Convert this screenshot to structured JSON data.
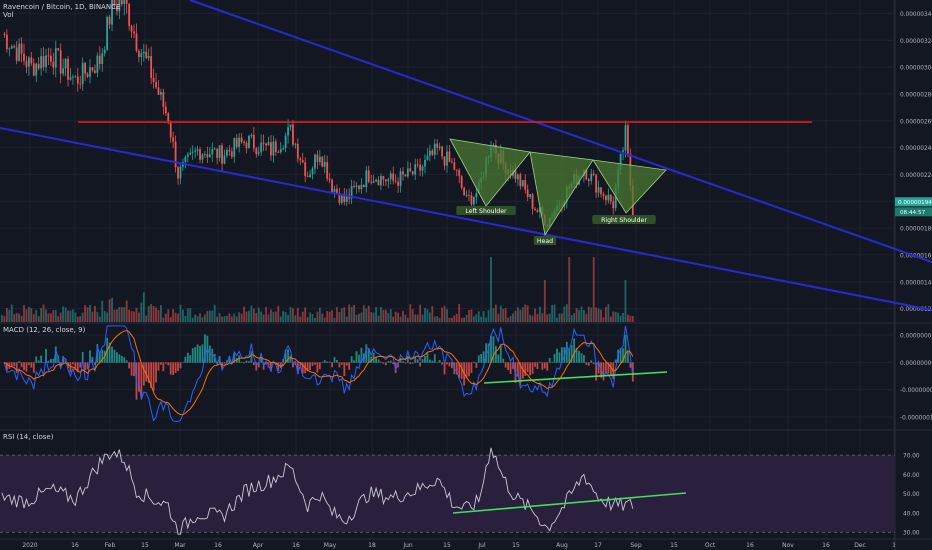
{
  "header": {
    "symbol_title": "Ravencoin / Bitcoin, 1D, BINANCE",
    "vol_label": "Vol",
    "macd_label": "MACD (12, 26, close, 9)",
    "rsi_label": "RSI (14, close)"
  },
  "colors": {
    "background": "#131722",
    "grid": "#1e222d",
    "up": "#26a69a",
    "down": "#ef5350",
    "channel": "#2929d4",
    "resistance": "#e11b1b",
    "pattern_fill": "#4b7a32",
    "trendline": "#42e05a",
    "rsi_line": "#c9c9d2",
    "rsi_band": "#2a1f3d",
    "macd_line": "#2962ff",
    "signal_line": "#ff6d00"
  },
  "chart_data": [
    {
      "panel": "price",
      "type": "candlestick",
      "title": "Ravencoin / Bitcoin, 1D, BINANCE",
      "x_ticks": [
        "2020",
        "16",
        "Feb",
        "15",
        "Mar",
        "16",
        "Apr",
        "16",
        "May",
        "18",
        "Jun",
        "15",
        "Jul",
        "15",
        "Aug",
        "17",
        "Sep",
        "15",
        "Oct",
        "16",
        "Nov",
        "16",
        "Dec",
        "1"
      ],
      "y_ticks": [
        "0.00000120",
        "0.00000140",
        "0.00000160",
        "0.00000180",
        "0.00000200",
        "0.00000220",
        "0.00000240",
        "0.00000260",
        "0.00000280",
        "0.00000300",
        "0.00000320",
        "0.00000340"
      ],
      "ylim": [
        1.1e-06,
        3.5e-06
      ],
      "last_price_tag": "0.00000194",
      "countdown_tag": "08:44:57",
      "approx_close_path": [
        [
          0,
          3.25e-06
        ],
        [
          12,
          3e-06
        ],
        [
          20,
          3.1e-06
        ],
        [
          30,
          2.9e-06
        ],
        [
          40,
          3.05e-06
        ],
        [
          45,
          3.45e-06
        ],
        [
          50,
          3.5e-06
        ],
        [
          55,
          3.2e-06
        ],
        [
          60,
          3e-06
        ],
        [
          63,
          2.85e-06
        ],
        [
          68,
          2.62e-06
        ],
        [
          72,
          2.2e-06
        ],
        [
          80,
          2.38e-06
        ],
        [
          90,
          2.35e-06
        ],
        [
          100,
          2.45e-06
        ],
        [
          110,
          2.38e-06
        ],
        [
          118,
          2.52e-06
        ],
        [
          125,
          2.2e-06
        ],
        [
          130,
          2.38e-06
        ],
        [
          135,
          2.12e-06
        ],
        [
          140,
          2e-06
        ],
        [
          150,
          2.2e-06
        ],
        [
          160,
          2.15e-06
        ],
        [
          170,
          2.22e-06
        ],
        [
          178,
          2.38e-06
        ],
        [
          185,
          2.25e-06
        ],
        [
          190,
          2e-06
        ],
        [
          195,
          2.08e-06
        ],
        [
          200,
          2.45e-06
        ],
        [
          205,
          2.28e-06
        ],
        [
          210,
          2.2e-06
        ],
        [
          218,
          1.95e-06
        ],
        [
          223,
          1.85e-06
        ],
        [
          230,
          2.05e-06
        ],
        [
          238,
          2.25e-06
        ],
        [
          244,
          2.1e-06
        ],
        [
          250,
          1.98e-06
        ],
        [
          255,
          2.5e-06
        ],
        [
          258,
          1.94e-06
        ]
      ],
      "overlays": {
        "resistance_level": 2.59e-06,
        "pattern": "inverse head and shoulders",
        "pattern_labels": [
          "Left Shoulder",
          "Head",
          "Right Shoulder"
        ]
      }
    },
    {
      "panel": "volume",
      "type": "bar",
      "title": "Vol"
    },
    {
      "panel": "macd",
      "type": "histogram",
      "title": "MACD (12, 26, close, 9)",
      "y_ticks": [
        "0.00000005",
        "0.00000000",
        "-0.00000005",
        "-0.00000010"
      ],
      "ylim": [
        -1.2e-07,
        7e-08
      ]
    },
    {
      "panel": "rsi",
      "type": "line",
      "title": "RSI (14, close)",
      "y_ticks": [
        "30.00",
        "40.00",
        "50.00",
        "60.00",
        "70.00"
      ],
      "ylim": [
        27,
        82
      ],
      "band": [
        30,
        70
      ],
      "approx_path": [
        [
          0,
          48
        ],
        [
          10,
          46
        ],
        [
          20,
          52
        ],
        [
          30,
          47
        ],
        [
          40,
          66
        ],
        [
          45,
          72
        ],
        [
          50,
          68
        ],
        [
          55,
          52
        ],
        [
          60,
          48
        ],
        [
          68,
          44
        ],
        [
          72,
          30
        ],
        [
          80,
          40
        ],
        [
          90,
          38
        ],
        [
          100,
          52
        ],
        [
          110,
          57
        ],
        [
          118,
          64
        ],
        [
          125,
          44
        ],
        [
          130,
          50
        ],
        [
          135,
          40
        ],
        [
          140,
          36
        ],
        [
          150,
          50
        ],
        [
          160,
          48
        ],
        [
          170,
          52
        ],
        [
          178,
          58
        ],
        [
          185,
          44
        ],
        [
          190,
          42
        ],
        [
          195,
          46
        ],
        [
          200,
          75
        ],
        [
          205,
          58
        ],
        [
          210,
          48
        ],
        [
          218,
          40
        ],
        [
          223,
          32
        ],
        [
          230,
          44
        ],
        [
          238,
          60
        ],
        [
          244,
          48
        ],
        [
          250,
          44
        ],
        [
          258,
          44
        ]
      ]
    }
  ]
}
